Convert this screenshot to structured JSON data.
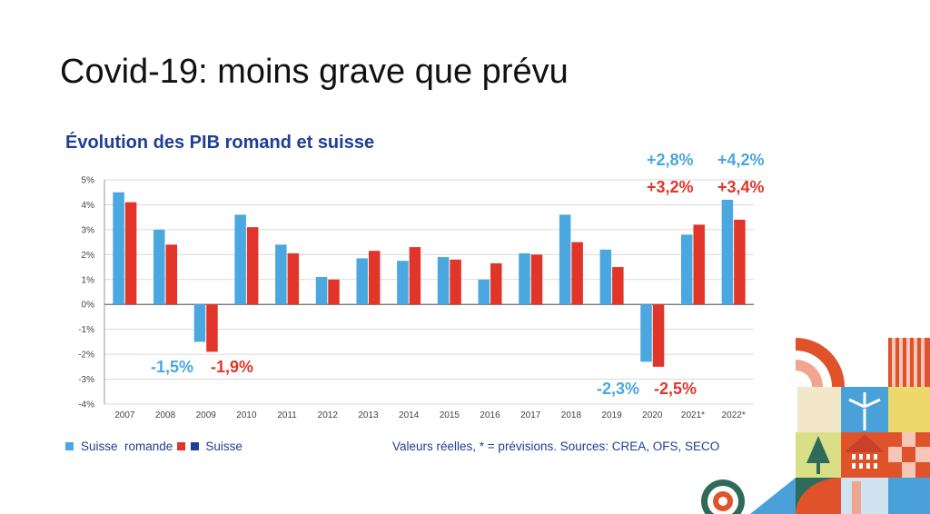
{
  "slide": {
    "title": "Covid-19: moins grave que prévu"
  },
  "colors": {
    "suisse_romande": "#4aa7e0",
    "suisse": "#e1352a",
    "title_blue": "#1f3f96"
  },
  "chart_data": {
    "type": "bar",
    "title": "Évolution des PIB romand et suisse",
    "categories": [
      "2007",
      "2008",
      "2009",
      "2010",
      "2011",
      "2012",
      "2013",
      "2014",
      "2015",
      "2016",
      "2017",
      "2018",
      "2019",
      "2020",
      "2021*",
      "2022*"
    ],
    "y_tick_labels": [
      "5%",
      "4%",
      "3%",
      "2%",
      "1%",
      "0%",
      "-1%",
      "-2%",
      "-3%",
      "-4%"
    ],
    "ylim": [
      -4,
      5
    ],
    "grid": true,
    "series": [
      {
        "name": "Suisse  romande",
        "color": "#4aa7e0",
        "values": [
          4.5,
          3.0,
          -1.5,
          3.6,
          2.4,
          1.1,
          1.85,
          1.75,
          1.9,
          1.0,
          2.05,
          3.6,
          2.2,
          -2.3,
          2.8,
          4.2
        ]
      },
      {
        "name": "Suisse",
        "color": "#e1352a",
        "values": [
          4.1,
          2.4,
          -1.9,
          3.1,
          2.05,
          1.0,
          2.15,
          2.3,
          1.8,
          1.65,
          2.0,
          2.5,
          1.5,
          -2.5,
          3.2,
          3.4
        ]
      }
    ],
    "annotations": [
      {
        "text": "-1,5%",
        "series": "blue"
      },
      {
        "text": "-1,9%",
        "series": "red"
      },
      {
        "text": "-2,3%",
        "series": "blue"
      },
      {
        "text": "-2,5%",
        "series": "red"
      },
      {
        "text": "+2,8%",
        "series": "blue"
      },
      {
        "text": "+4,2%",
        "series": "blue"
      },
      {
        "text": "+3,2%",
        "series": "red"
      },
      {
        "text": "+3,4%",
        "series": "red"
      }
    ],
    "legend": {
      "entries": [
        "Suisse  romande",
        "Suisse"
      ],
      "placement": "bottom-left"
    },
    "source_note": "Valeurs réelles, * = prévisions. Sources: CREA, OFS, SECO"
  }
}
